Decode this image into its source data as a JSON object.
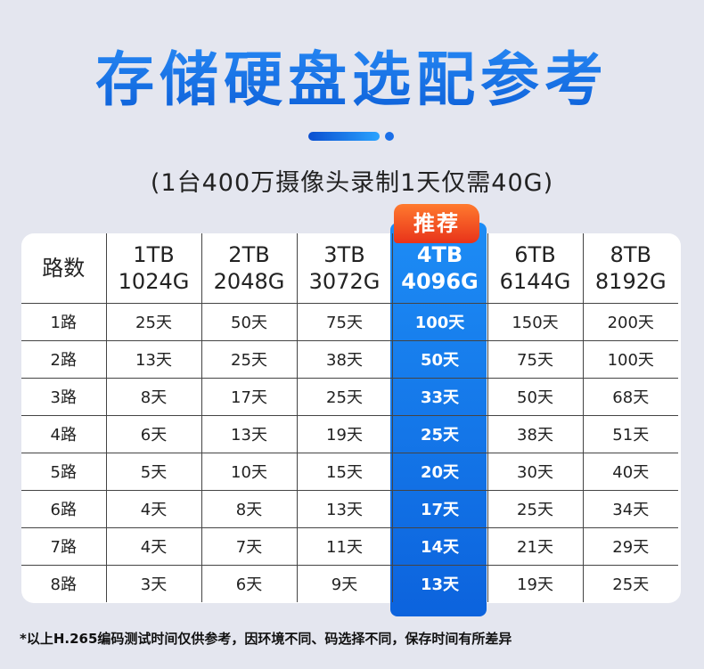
{
  "title": "存储硬盘选配参考",
  "subtitle": "(1台400万摄像头录制1天仅需40G)",
  "badge": "推荐",
  "colors": {
    "accent": "#1a6fe8",
    "badge": "#e8331a"
  },
  "table": {
    "corner": "路数",
    "columns": [
      {
        "cap": "1TB",
        "size": "1024G"
      },
      {
        "cap": "2TB",
        "size": "2048G"
      },
      {
        "cap": "3TB",
        "size": "3072G"
      },
      {
        "cap": "4TB",
        "size": "4096G"
      },
      {
        "cap": "6TB",
        "size": "6144G"
      },
      {
        "cap": "8TB",
        "size": "8192G"
      }
    ],
    "rows": [
      {
        "label": "1路",
        "cells": [
          "25天",
          "50天",
          "75天",
          "100天",
          "150天",
          "200天"
        ]
      },
      {
        "label": "2路",
        "cells": [
          "13天",
          "25天",
          "38天",
          "50天",
          "75天",
          "100天"
        ]
      },
      {
        "label": "3路",
        "cells": [
          "8天",
          "17天",
          "25天",
          "33天",
          "50天",
          "68天"
        ]
      },
      {
        "label": "4路",
        "cells": [
          "6天",
          "13天",
          "19天",
          "25天",
          "38天",
          "51天"
        ]
      },
      {
        "label": "5路",
        "cells": [
          "5天",
          "10天",
          "15天",
          "20天",
          "30天",
          "40天"
        ]
      },
      {
        "label": "6路",
        "cells": [
          "4天",
          "8天",
          "13天",
          "17天",
          "25天",
          "34天"
        ]
      },
      {
        "label": "7路",
        "cells": [
          "4天",
          "7天",
          "11天",
          "14天",
          "21天",
          "29天"
        ]
      },
      {
        "label": "8路",
        "cells": [
          "3天",
          "6天",
          "9天",
          "13天",
          "19天",
          "25天"
        ]
      }
    ]
  },
  "note": "*以上H.265编码测试时间仅供参考，因环境不同、码选择不同，保存时间有所差异"
}
